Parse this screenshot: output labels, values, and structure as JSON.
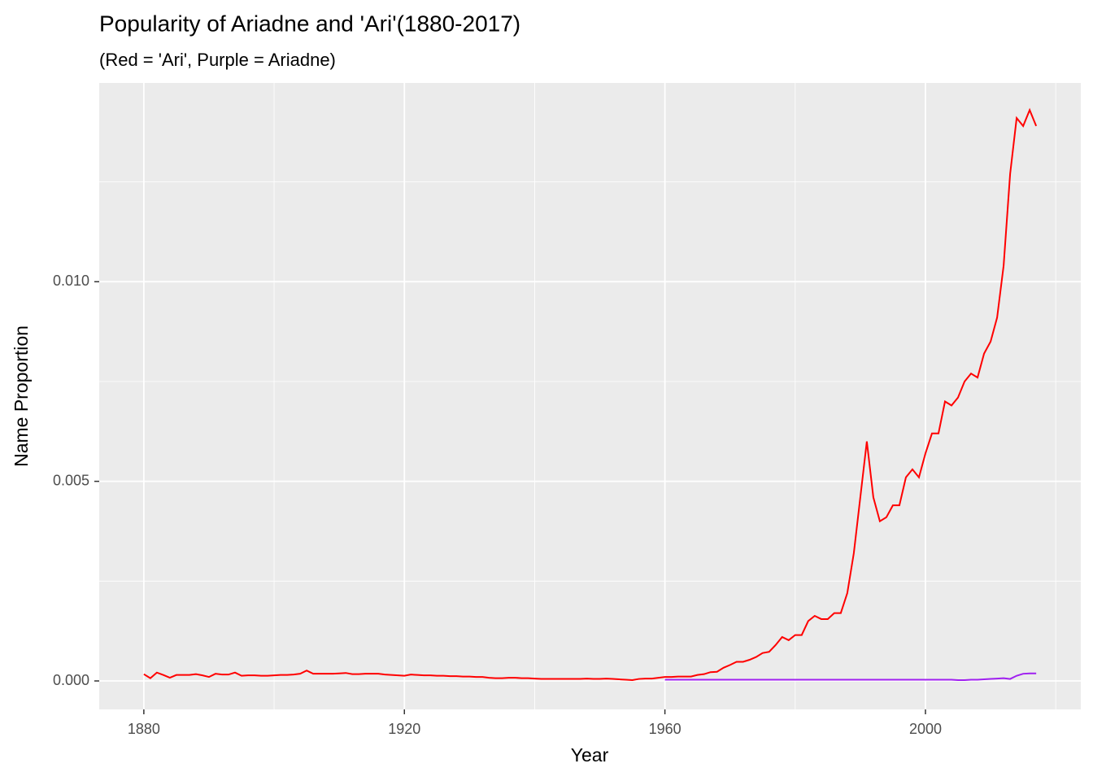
{
  "chart_data": {
    "type": "line",
    "title": "Popularity of Ariadne and 'Ari'(1880-2017)",
    "subtitle": "(Red = 'Ari', Purple = Ariadne)",
    "x_label": "Year",
    "y_label": "Name Proportion",
    "xlim": [
      1873.15,
      2023.85
    ],
    "ylim": [
      -0.000713,
      0.014978
    ],
    "xticks": [
      1880,
      1920,
      1960,
      2000
    ],
    "yticks": [
      {
        "value": 0,
        "label": "0.000"
      },
      {
        "value": 0.005,
        "label": "0.005"
      },
      {
        "value": 0.01,
        "label": "0.010"
      }
    ],
    "x_minor_breaks": [
      1900,
      1940,
      1980,
      2020
    ],
    "y_minor_breaks": [
      0.0025,
      0.0075,
      0.0125
    ],
    "grid": true,
    "series": [
      {
        "color": "#ff0000",
        "x": [
          1880,
          1881,
          1882,
          1883,
          1884,
          1885,
          1886,
          1887,
          1888,
          1889,
          1890,
          1891,
          1892,
          1893,
          1894,
          1895,
          1896,
          1897,
          1898,
          1899,
          1900,
          1901,
          1902,
          1903,
          1904,
          1905,
          1906,
          1907,
          1908,
          1909,
          1910,
          1911,
          1912,
          1913,
          1914,
          1915,
          1916,
          1917,
          1918,
          1919,
          1920,
          1921,
          1922,
          1923,
          1924,
          1925,
          1926,
          1927,
          1928,
          1929,
          1930,
          1931,
          1932,
          1933,
          1934,
          1935,
          1936,
          1937,
          1938,
          1939,
          1940,
          1941,
          1942,
          1943,
          1944,
          1945,
          1946,
          1947,
          1948,
          1949,
          1950,
          1951,
          1952,
          1953,
          1954,
          1955,
          1956,
          1957,
          1958,
          1959,
          1960,
          1961,
          1962,
          1963,
          1964,
          1965,
          1966,
          1967,
          1968,
          1969,
          1970,
          1971,
          1972,
          1973,
          1974,
          1975,
          1976,
          1977,
          1978,
          1979,
          1980,
          1981,
          1982,
          1983,
          1984,
          1985,
          1986,
          1987,
          1988,
          1989,
          1990,
          1991,
          1992,
          1993,
          1994,
          1995,
          1996,
          1997,
          1998,
          1999,
          2000,
          2001,
          2002,
          2003,
          2004,
          2005,
          2006,
          2007,
          2008,
          2009,
          2010,
          2011,
          2012,
          2013,
          2014,
          2015,
          2016,
          2017
        ],
        "values": [
          0.00017,
          7e-05,
          0.00021,
          0.00015,
          8e-05,
          0.00015,
          0.00015,
          0.00015,
          0.00017,
          0.00014,
          0.0001,
          0.00018,
          0.00016,
          0.00016,
          0.00021,
          0.00013,
          0.00014,
          0.00014,
          0.00013,
          0.00013,
          0.00014,
          0.00015,
          0.00015,
          0.00016,
          0.00018,
          0.00026,
          0.00018,
          0.00018,
          0.00018,
          0.00018,
          0.00019,
          0.0002,
          0.00017,
          0.00017,
          0.00018,
          0.00018,
          0.00018,
          0.00016,
          0.00015,
          0.00014,
          0.00013,
          0.00016,
          0.00015,
          0.00014,
          0.00014,
          0.00013,
          0.00013,
          0.00012,
          0.00012,
          0.00011,
          0.00011,
          0.0001,
          0.0001,
          8e-05,
          7e-05,
          7e-05,
          8e-05,
          8e-05,
          7e-05,
          7e-05,
          6e-05,
          5e-05,
          5e-05,
          5e-05,
          5e-05,
          5e-05,
          5e-05,
          5e-05,
          6e-05,
          5e-05,
          5e-05,
          6e-05,
          5e-05,
          4e-05,
          3e-05,
          2e-05,
          5e-05,
          6e-05,
          6e-05,
          8e-05,
          0.0001,
          0.0001,
          0.00011,
          0.00011,
          0.00011,
          0.00015,
          0.00017,
          0.00022,
          0.00023,
          0.00033,
          0.0004,
          0.00048,
          0.00048,
          0.00053,
          0.0006,
          0.0007,
          0.00073,
          0.0009,
          0.0011,
          0.00102,
          0.00115,
          0.00115,
          0.0015,
          0.00163,
          0.00155,
          0.00155,
          0.0017,
          0.0017,
          0.0022,
          0.0032,
          0.0046,
          0.006,
          0.0046,
          0.004,
          0.0041,
          0.0044,
          0.0044,
          0.0051,
          0.0053,
          0.0051,
          0.0057,
          0.0062,
          0.0062,
          0.007,
          0.0069,
          0.0071,
          0.0075,
          0.0077,
          0.0076,
          0.0082,
          0.0085,
          0.0091,
          0.0104,
          0.0127,
          0.0141,
          0.0139,
          0.0143,
          0.0139
        ]
      },
      {
        "color": "#a020f0",
        "x": [
          1960,
          1961,
          1962,
          1963,
          1964,
          1965,
          1966,
          1967,
          1968,
          1969,
          1970,
          1971,
          1972,
          1973,
          1974,
          1975,
          1976,
          1977,
          1978,
          1979,
          1980,
          1981,
          1982,
          1983,
          1984,
          1985,
          1986,
          1987,
          1988,
          1989,
          1990,
          1991,
          1992,
          1993,
          1994,
          1995,
          1996,
          1997,
          1998,
          1999,
          2000,
          2001,
          2002,
          2003,
          2004,
          2005,
          2006,
          2007,
          2008,
          2009,
          2010,
          2011,
          2012,
          2013,
          2014,
          2015,
          2016,
          2017
        ],
        "values": [
          3e-05,
          3e-05,
          3e-05,
          3e-05,
          3e-05,
          3e-05,
          3e-05,
          3e-05,
          3e-05,
          3e-05,
          3e-05,
          3e-05,
          3e-05,
          3e-05,
          3e-05,
          3e-05,
          3e-05,
          3e-05,
          3e-05,
          3e-05,
          3e-05,
          3e-05,
          3e-05,
          3e-05,
          3e-05,
          3e-05,
          3e-05,
          3e-05,
          3e-05,
          3e-05,
          3e-05,
          3e-05,
          3e-05,
          3e-05,
          3e-05,
          3e-05,
          3e-05,
          3e-05,
          3e-05,
          3e-05,
          3e-05,
          3e-05,
          3e-05,
          3e-05,
          3e-05,
          2e-05,
          2e-05,
          3e-05,
          3e-05,
          4e-05,
          5e-05,
          6e-05,
          7e-05,
          5e-05,
          0.00013,
          0.00018,
          0.00019,
          0.00019
        ]
      }
    ]
  }
}
